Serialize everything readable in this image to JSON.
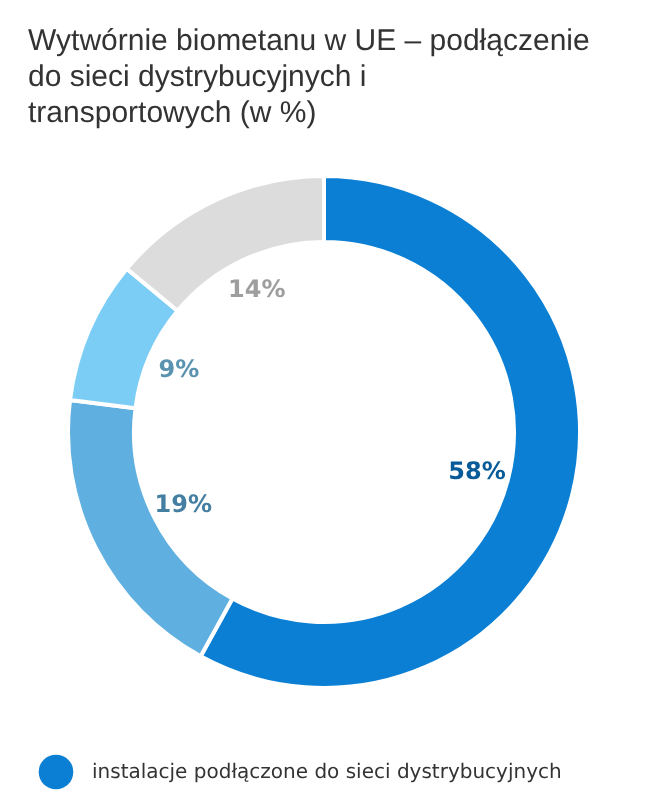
{
  "chart_data": {
    "type": "donut",
    "title": "Wytwórnie biometanu w UE – podłączenie do sieci dystrybucyjnych i transportowych (w %)",
    "categories": [
      "instalacje podłączone do sieci dystrybucyjnych",
      null,
      null,
      null
    ],
    "values": [
      58,
      19,
      9,
      14
    ],
    "colors": [
      "#0a7fd4",
      "#5fb0e0",
      "#7ccdf5",
      "#dcdcdc"
    ],
    "value_labels": [
      "58%",
      "19%",
      "9%",
      "14%"
    ],
    "legend": "bottom"
  }
}
